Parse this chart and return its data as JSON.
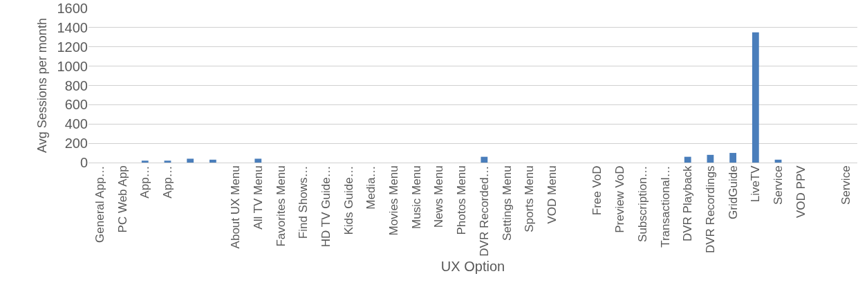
{
  "chart_data": {
    "type": "bar",
    "xlabel": "UX Option",
    "ylabel": "Avg Sessions per month",
    "categories": [
      "General App…",
      "PC Web App",
      "App…",
      "App…",
      null,
      null,
      "About UX Menu",
      "All TV Menu",
      "Favorites Menu",
      "Find Shows…",
      "HD TV Guide…",
      "Kids Guide…",
      "Media…",
      "Movies Menu",
      "Music Menu",
      "News Menu",
      "Photos Menu",
      "DVR Recorded…",
      "Settings Menu",
      "Sports Menu",
      "VOD Menu",
      null,
      "Free VoD",
      "Preview VoD",
      "Subscription…",
      "Transactional…",
      "DVR Playback",
      "DVR Recordings",
      "GridGuide",
      "LiveTV",
      "Service",
      "VOD PPV",
      null,
      "Service"
    ],
    "values": [
      0,
      0,
      20,
      20,
      40,
      30,
      0,
      40,
      0,
      0,
      0,
      0,
      0,
      0,
      0,
      0,
      0,
      60,
      0,
      0,
      0,
      null,
      0,
      0,
      0,
      0,
      60,
      80,
      100,
      1350,
      30,
      0,
      0,
      0
    ],
    "color": "#4a7ebb",
    "ylim": [
      0,
      1600
    ],
    "yticks": [
      0,
      200,
      400,
      600,
      800,
      1000,
      1200,
      1400,
      1600
    ],
    "grid": "y"
  }
}
